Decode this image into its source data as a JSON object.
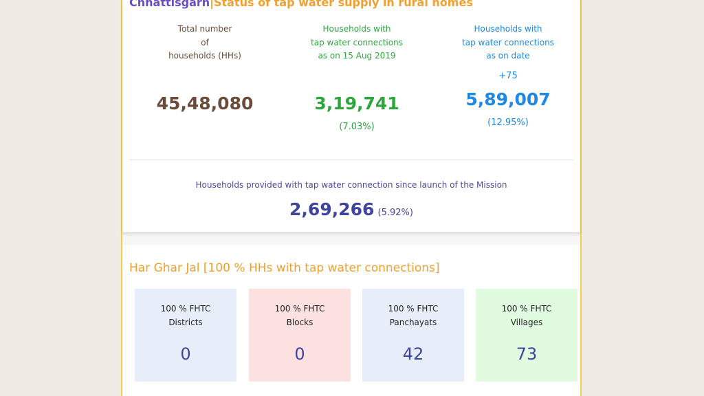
{
  "header": {
    "state": "Chhattisgarh",
    "separator": "|",
    "title": "Status of tap water supply in rural homes"
  },
  "stats": [
    {
      "label": [
        "Total number",
        "of",
        "households (HHs)"
      ],
      "value": "45,48,080"
    },
    {
      "label": [
        "Households with",
        "tap water connections",
        "as on 15 Aug 2019"
      ],
      "value": "3,19,741",
      "percent": "(7.03%)"
    },
    {
      "label": [
        "Households with",
        "tap water connections",
        "as on date"
      ],
      "delta": "+75",
      "value": "5,89,007",
      "percent": "(12.95%)"
    }
  ],
  "mission": {
    "label": "Households provided with tap water connection since launch of the Mission",
    "value": "2,69,266",
    "percent": "(5.92%)"
  },
  "har_ghar_jal": {
    "title": "Har Ghar Jal [100 % HHs with tap water connections]",
    "cards": [
      {
        "label": [
          "100 % FHTC",
          "Districts"
        ],
        "value": "0"
      },
      {
        "label": [
          "100 % FHTC",
          "Blocks"
        ],
        "value": "0"
      },
      {
        "label": [
          "100 % FHTC",
          "Panchayats"
        ],
        "value": "42"
      },
      {
        "label": [
          "100 % FHTC",
          "Villages"
        ],
        "value": "73"
      }
    ]
  }
}
